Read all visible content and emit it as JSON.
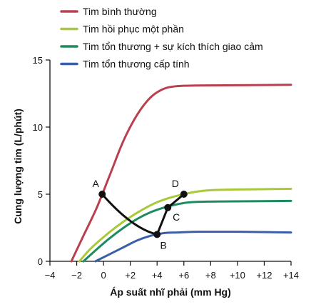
{
  "chart_data": {
    "type": "line",
    "xlabel": "Áp suất nhĩ phải (mm Hg)",
    "ylabel": "Cung lượng tim (L/phút)",
    "xlim": [
      -4,
      14
    ],
    "ylim": [
      0,
      15
    ],
    "x_ticks": [
      -4,
      -2,
      0,
      2,
      4,
      6,
      8,
      10,
      12,
      14
    ],
    "x_tick_labels": [
      "−4",
      "−2",
      "0",
      "+2",
      "+4",
      "+6",
      "+8",
      "+10",
      "+12",
      "+14"
    ],
    "y_ticks": [
      0,
      5,
      10,
      15
    ],
    "y_tick_labels": [
      "0",
      "5",
      "10",
      "15"
    ],
    "grid": false,
    "legend_position": "top",
    "series": [
      {
        "name": "Tim bình thường",
        "color": "#b8404f",
        "points": [
          [
            -2.4,
            0
          ],
          [
            -1.5,
            1.9
          ],
          [
            -0.5,
            4.0
          ],
          [
            0.5,
            6.5
          ],
          [
            1.5,
            9.0
          ],
          [
            2.5,
            10.9
          ],
          [
            3.5,
            12.2
          ],
          [
            4.5,
            12.85
          ],
          [
            5.5,
            13.05
          ],
          [
            7,
            13.1
          ],
          [
            10,
            13.12
          ],
          [
            14,
            13.15
          ]
        ]
      },
      {
        "name": "Tim hồi phục một phần",
        "color": "#a9c83a",
        "points": [
          [
            -1.8,
            0
          ],
          [
            -1,
            0.9
          ],
          [
            0,
            1.8
          ],
          [
            1,
            2.6
          ],
          [
            2,
            3.3
          ],
          [
            3,
            3.9
          ],
          [
            4,
            4.4
          ],
          [
            5,
            4.75
          ],
          [
            6,
            5.0
          ],
          [
            7,
            5.2
          ],
          [
            8,
            5.3
          ],
          [
            10,
            5.35
          ],
          [
            14,
            5.4
          ]
        ]
      },
      {
        "name": "Tim tổn thương + sự kích thích giao cảm",
        "color": "#1e8a5e",
        "points": [
          [
            -1.5,
            0
          ],
          [
            -0.5,
            0.9
          ],
          [
            0.5,
            1.75
          ],
          [
            1.5,
            2.5
          ],
          [
            2.5,
            3.15
          ],
          [
            3.5,
            3.65
          ],
          [
            4.5,
            4.0
          ],
          [
            5.5,
            4.25
          ],
          [
            6.5,
            4.4
          ],
          [
            8,
            4.45
          ],
          [
            10,
            4.47
          ],
          [
            14,
            4.5
          ]
        ]
      },
      {
        "name": "Tim tổn thương cấp tính",
        "color": "#3b5ea8",
        "points": [
          [
            -0.6,
            0
          ],
          [
            0.5,
            0.55
          ],
          [
            1.5,
            1.05
          ],
          [
            2.5,
            1.55
          ],
          [
            3.5,
            1.9
          ],
          [
            4.5,
            2.1
          ],
          [
            5.5,
            2.15
          ],
          [
            7,
            2.2
          ],
          [
            10,
            2.2
          ],
          [
            14,
            2.15
          ]
        ]
      }
    ],
    "path": {
      "color": "#111111",
      "points": [
        {
          "label": "A",
          "x": -0.1,
          "y": 5.0
        },
        {
          "label": "B",
          "x": 4.0,
          "y": 2.0
        },
        {
          "label": "C",
          "x": 4.8,
          "y": 4.0
        },
        {
          "label": "D",
          "x": 6.0,
          "y": 5.0
        }
      ]
    }
  }
}
